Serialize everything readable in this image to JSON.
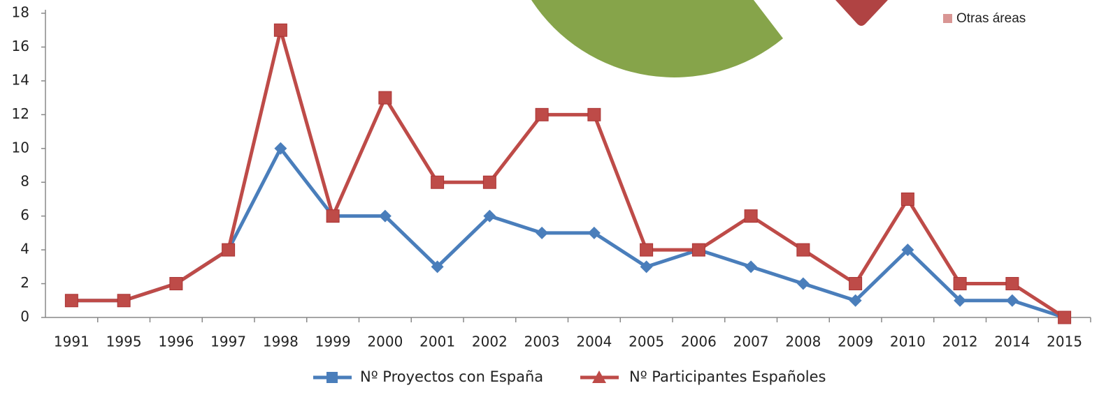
{
  "chart_data": {
    "type": "line",
    "categories": [
      "1991",
      "1995",
      "1996",
      "1997",
      "1998",
      "1999",
      "2000",
      "2001",
      "2002",
      "2003",
      "2004",
      "2005",
      "2006",
      "2007",
      "2008",
      "2009",
      "2010",
      "2012",
      "2014",
      "2015"
    ],
    "series": [
      {
        "name": "Nº Proyectos con España",
        "color": "#4a7ebb",
        "marker": "diamond",
        "values": [
          1,
          1,
          2,
          4,
          10,
          6,
          6,
          3,
          6,
          5,
          5,
          3,
          4,
          3,
          2,
          1,
          4,
          1,
          1,
          0
        ]
      },
      {
        "name": "Nº Participantes Españoles",
        "color": "#be4b48",
        "marker": "square",
        "values": [
          1,
          1,
          2,
          4,
          17,
          6,
          13,
          8,
          8,
          12,
          12,
          4,
          4,
          6,
          4,
          2,
          7,
          2,
          2,
          0
        ]
      }
    ],
    "ylim": [
      0,
      18
    ],
    "yticks": [
      0,
      2,
      4,
      6,
      8,
      10,
      12,
      14,
      16,
      18
    ],
    "grid": false
  },
  "overlay": {
    "legend_label": "Otras áreas"
  }
}
